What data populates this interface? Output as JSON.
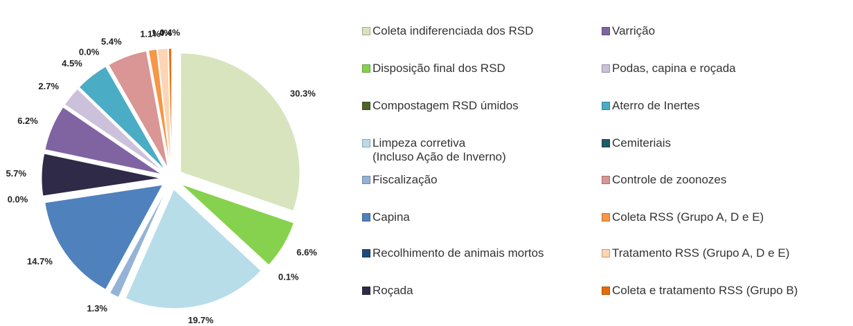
{
  "chart_data": {
    "type": "pie",
    "categories": [
      "Coleta indiferenciada dos RSD",
      "Disposição final dos RSD",
      "Compostagem RSD úmidos",
      "Limpeza corretiva\n(Incluso Ação de Inverno)",
      "Fiscalização",
      "Capina",
      "Recolhimento de animais mortos",
      "Roçada",
      "Varrição",
      "Podas, capina e roçada",
      "Aterro de Inertes",
      "Cemiteriais",
      "Controle de zoonozes",
      "Coleta RSS (Grupo A, D e E)",
      "Tratamento RSS (Grupo A, D e E)",
      "Coleta e tratamento RSS (Grupo B)"
    ],
    "values": [
      30.3,
      6.6,
      0.1,
      19.7,
      1.3,
      14.7,
      0.0,
      5.7,
      6.2,
      2.7,
      4.5,
      0.0,
      5.4,
      1.1,
      1.4,
      0.4
    ],
    "value_labels": [
      "30.3%",
      "6.6%",
      "0.1%",
      "19.7%",
      "1.3%",
      "14.7%",
      "0.0%",
      "5.7%",
      "6.2%",
      "2.7%",
      "4.5%",
      "0.0%",
      "5.4%",
      "1.1%",
      "1.4%",
      "0.4%"
    ],
    "colors": [
      "#d7e4bd",
      "#86d24e",
      "#4f6228",
      "#b7dde8",
      "#95b3d7",
      "#4f81bd",
      "#1f497d",
      "#2f2a48",
      "#8064a2",
      "#ccc1da",
      "#4bacc6",
      "#215968",
      "#d99694",
      "#f79646",
      "#fcd5b5",
      "#e46c0a"
    ]
  }
}
